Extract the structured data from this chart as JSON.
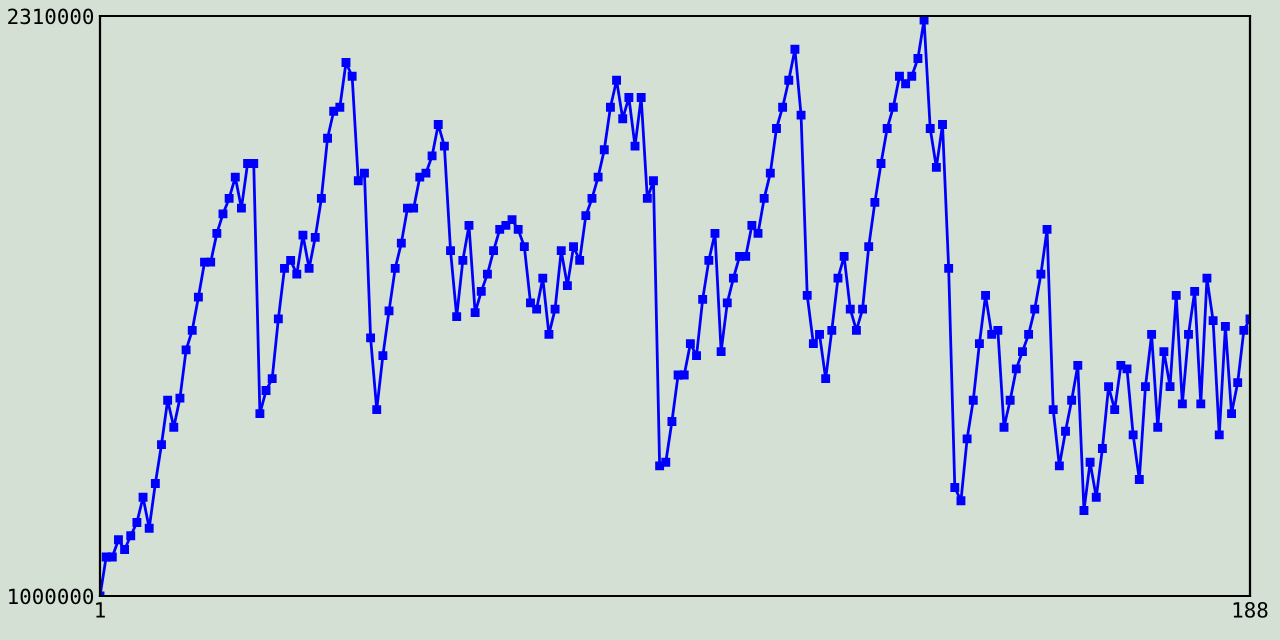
{
  "chart_data": {
    "type": "line",
    "x": [
      1,
      2,
      3,
      4,
      5,
      6,
      7,
      8,
      9,
      10,
      11,
      12,
      13,
      14,
      15,
      16,
      17,
      18,
      19,
      20,
      21,
      22,
      23,
      24,
      25,
      26,
      27,
      28,
      29,
      30,
      31,
      32,
      33,
      34,
      35,
      36,
      37,
      38,
      39,
      40,
      41,
      42,
      43,
      44,
      45,
      46,
      47,
      48,
      49,
      50,
      51,
      52,
      53,
      54,
      55,
      56,
      57,
      58,
      59,
      60,
      61,
      62,
      63,
      64,
      65,
      66,
      67,
      68,
      69,
      70,
      71,
      72,
      73,
      74,
      75,
      76,
      77,
      78,
      79,
      80,
      81,
      82,
      83,
      84,
      85,
      86,
      87,
      88,
      89,
      90,
      91,
      92,
      93,
      94,
      95,
      96,
      97,
      98,
      99,
      100,
      101,
      102,
      103,
      104,
      105,
      106,
      107,
      108,
      109,
      110,
      111,
      112,
      113,
      114,
      115,
      116,
      117,
      118,
      119,
      120,
      121,
      122,
      123,
      124,
      125,
      126,
      127,
      128,
      129,
      130,
      131,
      132,
      133,
      134,
      135,
      136,
      137,
      138,
      139,
      140,
      141,
      142,
      143,
      144,
      145,
      146,
      147,
      148,
      149,
      150,
      151,
      152,
      153,
      154,
      155,
      156,
      157,
      158,
      159,
      160,
      161,
      162,
      163,
      164,
      165,
      166,
      167,
      168,
      169,
      170,
      171,
      172,
      173,
      174,
      175,
      176,
      177,
      178,
      179,
      180,
      181,
      182,
      183,
      184,
      185,
      186,
      187,
      188
    ],
    "series": [
      {
        "color": "#0000ff",
        "values": [
          1000000,
          1088000,
          1088000,
          1127000,
          1105000,
          1136000,
          1166000,
          1223000,
          1153000,
          1254000,
          1342000,
          1442000,
          1381000,
          1447000,
          1556000,
          1600000,
          1675000,
          1754000,
          1754000,
          1819000,
          1863000,
          1898000,
          1946000,
          1876000,
          1977000,
          1977000,
          1412000,
          1464000,
          1491000,
          1626000,
          1740000,
          1758000,
          1727000,
          1815000,
          1740000,
          1810000,
          1898000,
          2034000,
          2095000,
          2104000,
          2205000,
          2174000,
          1938000,
          1955000,
          1583000,
          1421000,
          1543000,
          1644000,
          1740000,
          1797000,
          1876000,
          1876000,
          1946000,
          1955000,
          1994000,
          2065000,
          2016000,
          1780000,
          1631000,
          1758000,
          1837000,
          1640000,
          1688000,
          1727000,
          1780000,
          1828000,
          1837000,
          1850000,
          1828000,
          1789000,
          1662000,
          1648000,
          1718000,
          1591000,
          1648000,
          1780000,
          1701000,
          1789000,
          1758000,
          1859000,
          1898000,
          1946000,
          2008000,
          2104000,
          2165000,
          2078000,
          2126000,
          2016000,
          2126000,
          1898000,
          1938000,
          1294000,
          1302000,
          1394000,
          1499000,
          1499000,
          1570000,
          1543000,
          1670000,
          1758000,
          1819000,
          1552000,
          1662000,
          1718000,
          1767000,
          1767000,
          1837000,
          1819000,
          1898000,
          1955000,
          2056000,
          2104000,
          2165000,
          2235000,
          2086000,
          1679000,
          1570000,
          1591000,
          1491000,
          1600000,
          1718000,
          1767000,
          1648000,
          1600000,
          1648000,
          1789000,
          1889000,
          1977000,
          2056000,
          2104000,
          2174000,
          2157000,
          2174000,
          2214000,
          2301000,
          2056000,
          1968000,
          2065000,
          1740000,
          1245000,
          1215000,
          1355000,
          1442000,
          1570000,
          1679000,
          1591000,
          1600000,
          1381000,
          1442000,
          1513000,
          1552000,
          1591000,
          1648000,
          1727000,
          1828000,
          1421000,
          1294000,
          1372000,
          1442000,
          1521000,
          1193000,
          1302000,
          1223000,
          1333000,
          1473000,
          1421000,
          1521000,
          1513000,
          1364000,
          1263000,
          1473000,
          1591000,
          1381000,
          1552000,
          1473000,
          1679000,
          1434000,
          1591000,
          1688000,
          1434000,
          1718000,
          1622000,
          1364000,
          1609000,
          1412000,
          1482000,
          1600000,
          1626000
        ]
      }
    ],
    "xlim": [
      1,
      188
    ],
    "ylim": [
      1000000,
      2310000
    ],
    "xticks": [
      1,
      188
    ],
    "yticks": [
      1000000,
      2310000
    ],
    "marker": "square",
    "line_style": "solid"
  }
}
